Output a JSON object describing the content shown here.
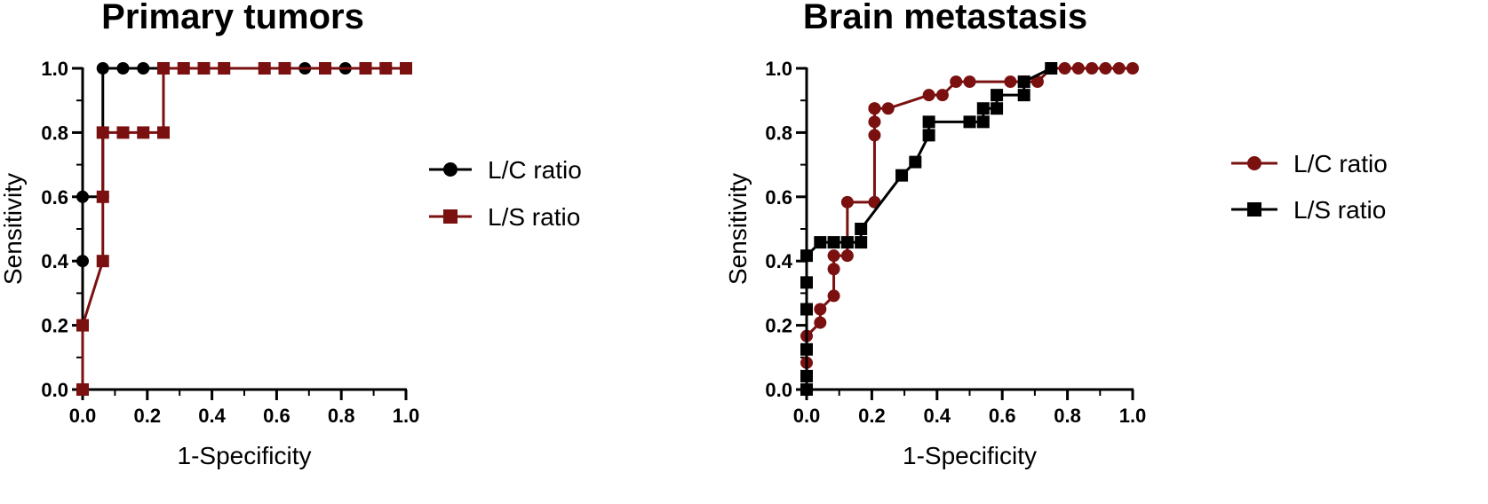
{
  "chart_data": [
    {
      "type": "line",
      "title": "Primary tumors",
      "xlabel": "1-Specificity",
      "ylabel": "Sensitivity",
      "xlim": [
        0,
        1
      ],
      "ylim": [
        0,
        1
      ],
      "xticks": [
        "0.0",
        "0.2",
        "0.4",
        "0.6",
        "0.8",
        "1.0"
      ],
      "yticks": [
        "0.0",
        "0.2",
        "0.4",
        "0.6",
        "0.8",
        "1.0"
      ],
      "grid": false,
      "legend_position": "right",
      "series": [
        {
          "name": "L/C ratio",
          "color": "#000000",
          "marker": "circle",
          "x": [
            0,
            0,
            0,
            0.0625,
            0.0625,
            0.125,
            0.1875,
            0.25,
            0.3125,
            0.375,
            0.4375,
            0.5625,
            0.625,
            0.6875,
            0.75,
            0.8125,
            0.875,
            0.9375,
            1.0
          ],
          "y": [
            0,
            0.4,
            0.6,
            0.6,
            1.0,
            1.0,
            1.0,
            1.0,
            1.0,
            1.0,
            1.0,
            1.0,
            1.0,
            1.0,
            1.0,
            1.0,
            1.0,
            1.0,
            1.0
          ]
        },
        {
          "name": "L/S ratio",
          "color": "#7b1010",
          "marker": "square",
          "x": [
            0,
            0,
            0.0625,
            0.0625,
            0.0625,
            0.125,
            0.1875,
            0.25,
            0.25,
            0.3125,
            0.375,
            0.4375,
            0.5625,
            0.625,
            0.75,
            0.875,
            0.9375,
            1.0
          ],
          "y": [
            0,
            0.2,
            0.4,
            0.6,
            0.8,
            0.8,
            0.8,
            0.8,
            1.0,
            1.0,
            1.0,
            1.0,
            1.0,
            1.0,
            1.0,
            1.0,
            1.0,
            1.0
          ]
        }
      ]
    },
    {
      "type": "line",
      "title": "Brain metastasis",
      "xlabel": "1-Specificity",
      "ylabel": "Sensitivity",
      "xlim": [
        0,
        1
      ],
      "ylim": [
        0,
        1
      ],
      "xticks": [
        "0.0",
        "0.2",
        "0.4",
        "0.6",
        "0.8",
        "1.0"
      ],
      "yticks": [
        "0.0",
        "0.2",
        "0.4",
        "0.6",
        "0.8",
        "1.0"
      ],
      "grid": false,
      "legend_position": "right",
      "series": [
        {
          "name": "L/C ratio",
          "color": "#7b1010",
          "marker": "circle",
          "x": [
            0,
            0,
            0,
            0,
            0.0417,
            0.0417,
            0.0833,
            0.0833,
            0.0833,
            0.125,
            0.125,
            0.2083,
            0.2083,
            0.2083,
            0.2083,
            0.2083,
            0.25,
            0.375,
            0.4167,
            0.4583,
            0.5,
            0.625,
            0.6667,
            0.7083,
            0.75,
            0.7917,
            0.8333,
            0.875,
            0.9167,
            0.9583,
            1.0
          ],
          "y": [
            0.0417,
            0.0833,
            0.125,
            0.1667,
            0.2083,
            0.25,
            0.2917,
            0.375,
            0.4167,
            0.4167,
            0.5833,
            0.5833,
            0.7917,
            0.8333,
            0.875,
            0.875,
            0.875,
            0.9167,
            0.9167,
            0.9583,
            0.9583,
            0.9583,
            0.9583,
            0.9583,
            1.0,
            1.0,
            1.0,
            1.0,
            1.0,
            1.0,
            1.0
          ]
        },
        {
          "name": "L/S ratio",
          "color": "#000000",
          "marker": "square",
          "x": [
            0,
            0,
            0,
            0,
            0,
            0,
            0.0417,
            0.0833,
            0.125,
            0.1667,
            0.1667,
            0.2917,
            0.3333,
            0.375,
            0.375,
            0.5,
            0.5417,
            0.5417,
            0.5833,
            0.5833,
            0.6667,
            0.6667,
            0.75
          ],
          "y": [
            0,
            0.0417,
            0.125,
            0.25,
            0.3333,
            0.4167,
            0.4583,
            0.4583,
            0.4583,
            0.4583,
            0.5,
            0.6667,
            0.7083,
            0.7917,
            0.8333,
            0.8333,
            0.8333,
            0.875,
            0.875,
            0.9167,
            0.9167,
            0.9583,
            1.0
          ]
        }
      ]
    }
  ]
}
